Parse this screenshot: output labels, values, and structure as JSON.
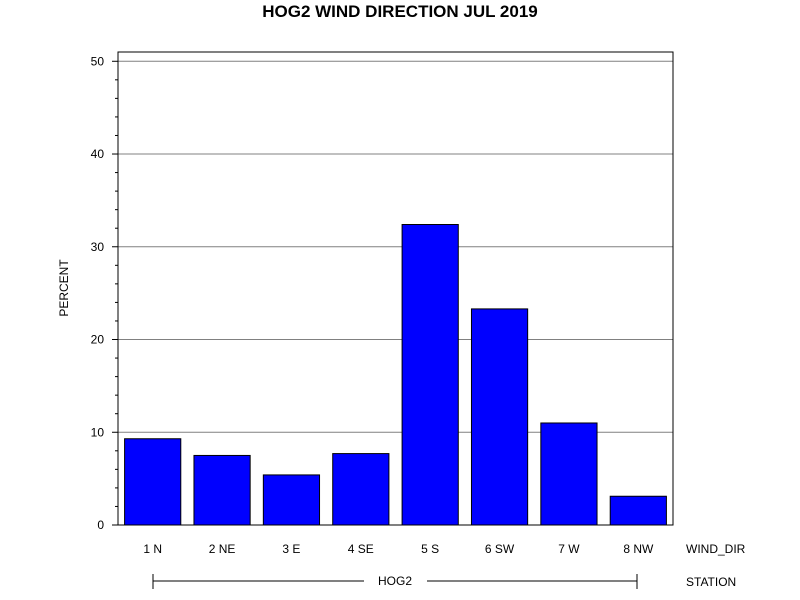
{
  "chart_data": {
    "type": "bar",
    "title": "HOG2 WIND DIRECTION JUL 2019",
    "ylabel": "PERCENT",
    "xlabel": "WIND_DIR",
    "group_axis_label": "STATION",
    "group_label": "HOG2",
    "categories": [
      "1 N",
      "2 NE",
      "3 E",
      "4 SE",
      "5 S",
      "6 SW",
      "7 W",
      "8 NW"
    ],
    "values": [
      9.3,
      7.5,
      5.4,
      7.7,
      32.4,
      23.3,
      11.0,
      3.1
    ],
    "ylim": [
      0,
      51
    ],
    "yticks": [
      0,
      10,
      20,
      30,
      40,
      50
    ],
    "grid": true,
    "bar_color": "#0000ff",
    "bar_outline": "#000000",
    "grid_color": "#808080"
  }
}
